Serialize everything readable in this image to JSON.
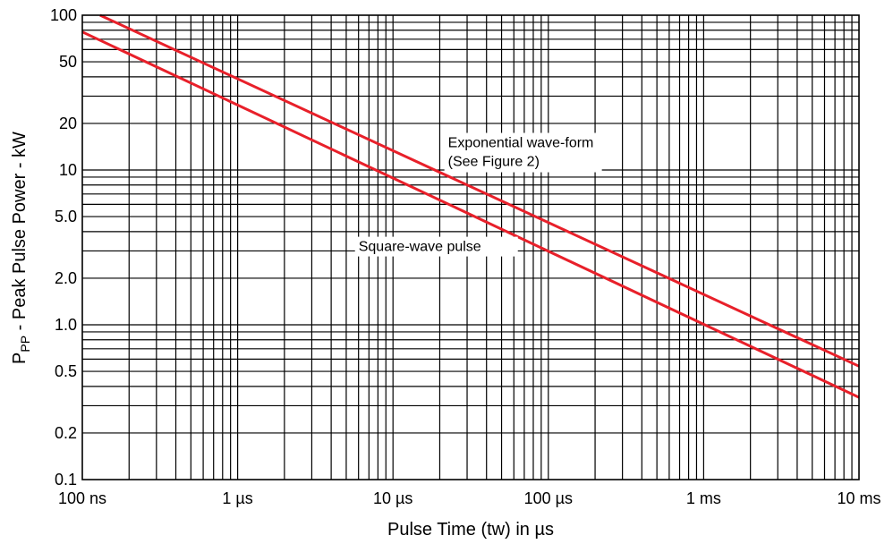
{
  "chart_data": {
    "type": "line",
    "x_scale": "log",
    "y_scale": "log",
    "xlim_us": [
      0.1,
      10000
    ],
    "ylim": [
      0.1,
      100
    ],
    "grid": true,
    "x_ticks": [
      {
        "value": 0.1,
        "label": "100 ns"
      },
      {
        "value": 1,
        "label": "1 µs"
      },
      {
        "value": 10,
        "label": "10 µs"
      },
      {
        "value": 100,
        "label": "100 µs"
      },
      {
        "value": 1000,
        "label": "1 ms"
      },
      {
        "value": 10000,
        "label": "10 ms"
      }
    ],
    "y_ticks": [
      {
        "value": 100,
        "label": "100"
      },
      {
        "value": 50,
        "label": "50"
      },
      {
        "value": 20,
        "label": "20"
      },
      {
        "value": 10,
        "label": "10"
      },
      {
        "value": 5,
        "label": "5.0"
      },
      {
        "value": 2,
        "label": "2.0"
      },
      {
        "value": 1,
        "label": "1.0"
      },
      {
        "value": 0.5,
        "label": "0.5"
      },
      {
        "value": 0.2,
        "label": "0.2"
      },
      {
        "value": 0.1,
        "label": "0.1"
      }
    ],
    "xlabel": "Pulse Time (tw) in µs",
    "ylabel": {
      "main": "P",
      "sub": "PP",
      "rest": " - Peak Pulse Power - kW"
    },
    "series": [
      {
        "name": "Exponential wave-form (See Figure 2)",
        "color": "#e8202a",
        "x": [
          0.13,
          10000
        ],
        "y": [
          100,
          0.54
        ]
      },
      {
        "name": "Square-wave pulse",
        "color": "#e8202a",
        "x": [
          0.1,
          10000
        ],
        "y": [
          78,
          0.34
        ]
      }
    ],
    "annotations": [
      {
        "line1": "Exponential wave-form",
        "line2": "(See Figure 2)",
        "x": 22,
        "y": 15
      },
      {
        "line1": "Square-wave pulse",
        "x": 6.5,
        "y": 3.2
      }
    ]
  }
}
